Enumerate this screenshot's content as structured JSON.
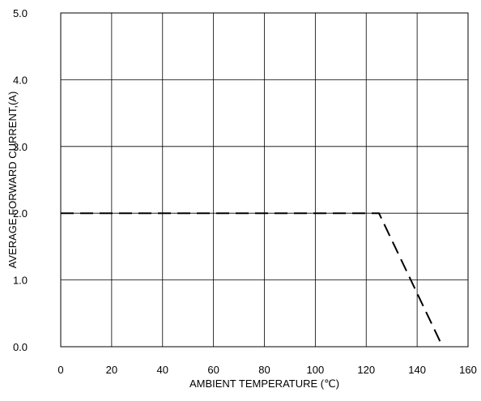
{
  "chart_data": {
    "type": "line",
    "xlabel": "AMBIENT TEMPERATURE (℃)",
    "ylabel": "AVERAGE FORWARD CURRENT,(A)",
    "xlim": [
      0,
      160
    ],
    "ylim": [
      0,
      5
    ],
    "grid": true,
    "x_ticks": [
      {
        "value": 0,
        "label": "0"
      },
      {
        "value": 20,
        "label": "20"
      },
      {
        "value": 40,
        "label": "40"
      },
      {
        "value": 60,
        "label": "60"
      },
      {
        "value": 80,
        "label": "80"
      },
      {
        "value": 100,
        "label": "100"
      },
      {
        "value": 120,
        "label": "120"
      },
      {
        "value": 140,
        "label": "140"
      },
      {
        "value": 160,
        "label": "160"
      }
    ],
    "y_ticks": [
      {
        "value": 0,
        "label": "0.0"
      },
      {
        "value": 1,
        "label": "1.0"
      },
      {
        "value": 2,
        "label": "2.0"
      },
      {
        "value": 3,
        "label": "3.0"
      },
      {
        "value": 4,
        "label": "4.0"
      },
      {
        "value": 5,
        "label": "5.0"
      }
    ],
    "series": [
      {
        "line_style": "dashed",
        "color": "#000000",
        "points": [
          {
            "x": 0,
            "y": 2.0
          },
          {
            "x": 125,
            "y": 2.0
          },
          {
            "x": 150,
            "y": 0.0
          }
        ]
      }
    ]
  }
}
